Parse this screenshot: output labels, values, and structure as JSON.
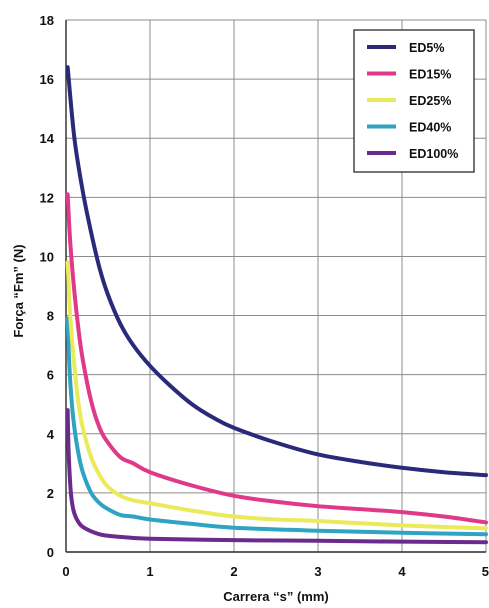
{
  "chart_data": {
    "type": "line",
    "title": "",
    "xlabel": "Carrera “s” (mm)",
    "ylabel": "Força “Fm” (N)",
    "xlim": [
      0,
      5
    ],
    "ylim": [
      0,
      18
    ],
    "xticks": [
      0,
      1,
      2,
      3,
      4,
      5
    ],
    "yticks": [
      0,
      2,
      4,
      6,
      8,
      10,
      12,
      14,
      16,
      18
    ],
    "grid": true,
    "legend_position": "top-right",
    "series": [
      {
        "name": "ED5%",
        "color": "#2b2a7a",
        "x": [
          0.02,
          0.1,
          0.2,
          0.3,
          0.4,
          0.5,
          0.65,
          0.8,
          1.0,
          1.25,
          1.5,
          1.75,
          2.0,
          2.5,
          3.0,
          3.5,
          4.0,
          4.5,
          5.0
        ],
        "y": [
          16.4,
          14.0,
          12.2,
          10.8,
          9.6,
          8.7,
          7.7,
          7.0,
          6.3,
          5.6,
          5.0,
          4.55,
          4.2,
          3.7,
          3.3,
          3.05,
          2.85,
          2.7,
          2.6
        ]
      },
      {
        "name": "ED15%",
        "color": "#e0398a",
        "x": [
          0.02,
          0.05,
          0.1,
          0.15,
          0.2,
          0.3,
          0.4,
          0.5,
          0.65,
          0.8,
          1.0,
          1.5,
          2.0,
          2.5,
          3.0,
          3.5,
          4.0,
          4.5,
          5.0
        ],
        "y": [
          12.1,
          10.5,
          8.8,
          7.5,
          6.5,
          5.1,
          4.2,
          3.7,
          3.2,
          3.0,
          2.7,
          2.25,
          1.9,
          1.7,
          1.55,
          1.45,
          1.35,
          1.2,
          1.0
        ]
      },
      {
        "name": "ED25%",
        "color": "#eaea5a",
        "x": [
          0.02,
          0.05,
          0.1,
          0.15,
          0.2,
          0.3,
          0.4,
          0.5,
          0.65,
          0.8,
          1.0,
          1.5,
          2.0,
          2.5,
          3.0,
          4.0,
          5.0
        ],
        "y": [
          9.8,
          8.0,
          6.3,
          5.0,
          4.2,
          3.2,
          2.6,
          2.2,
          1.9,
          1.75,
          1.65,
          1.4,
          1.2,
          1.1,
          1.05,
          0.9,
          0.8
        ]
      },
      {
        "name": "ED40%",
        "color": "#2fa3c2",
        "x": [
          0.02,
          0.04,
          0.07,
          0.1,
          0.15,
          0.2,
          0.3,
          0.4,
          0.5,
          0.65,
          0.8,
          1.0,
          1.5,
          2.0,
          3.0,
          4.0,
          5.0
        ],
        "y": [
          7.9,
          6.3,
          5.0,
          4.2,
          3.3,
          2.7,
          2.0,
          1.65,
          1.45,
          1.25,
          1.2,
          1.1,
          0.95,
          0.82,
          0.72,
          0.65,
          0.6
        ]
      },
      {
        "name": "ED100%",
        "color": "#6b2a8e",
        "x": [
          0.02,
          0.03,
          0.05,
          0.07,
          0.1,
          0.15,
          0.2,
          0.3,
          0.4,
          0.5,
          0.7,
          1.0,
          2.0,
          3.0,
          4.0,
          5.0
        ],
        "y": [
          4.8,
          3.5,
          2.3,
          1.7,
          1.3,
          1.0,
          0.85,
          0.7,
          0.6,
          0.55,
          0.5,
          0.45,
          0.4,
          0.38,
          0.35,
          0.33
        ]
      }
    ]
  }
}
